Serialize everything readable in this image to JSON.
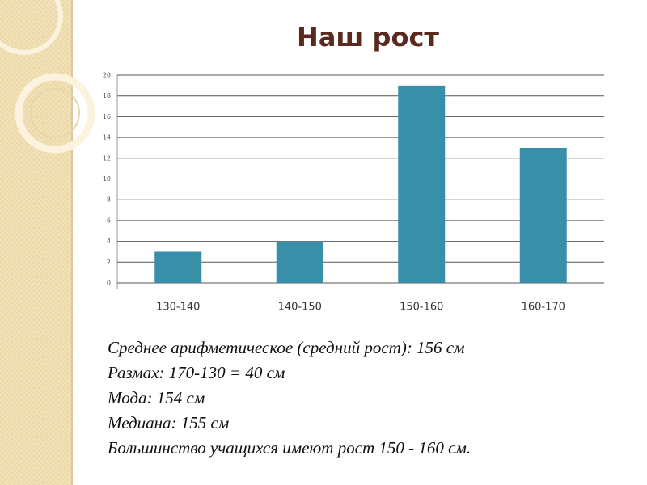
{
  "chart_data": {
    "type": "bar",
    "title": "Наш рост",
    "categories": [
      "130-140",
      "140-150",
      "150-160",
      "160-170"
    ],
    "values": [
      3,
      4,
      19,
      13
    ],
    "color": "#3a8fa8",
    "ylim": [
      0,
      20
    ],
    "yticks": [
      0,
      2,
      4,
      6,
      8,
      10,
      12,
      14,
      16,
      18,
      20
    ],
    "grid": true
  },
  "notes": {
    "lines": [
      "Среднее арифметическое (средний рост): 156 см",
      "Размах: 170-130 = 40 см",
      "Мода: 154 см",
      "Медиана: 155 см",
      "Большинство учащихся имеют рост 150 - 160 см."
    ]
  }
}
